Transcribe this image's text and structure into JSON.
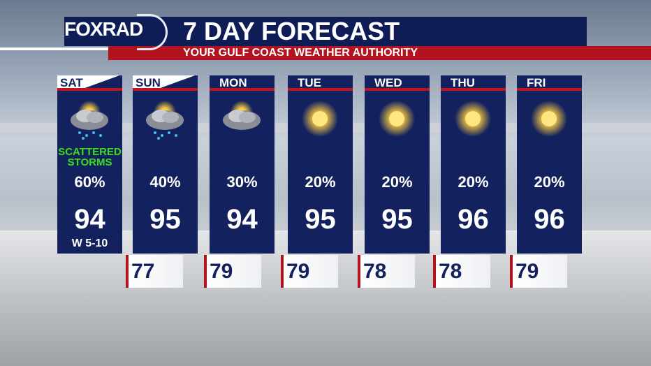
{
  "header": {
    "logo": "FOXRAD",
    "title": "7 DAY FORECAST",
    "subtitle": "YOUR GULF COAST WEATHER AUTHORITY"
  },
  "colors": {
    "navy": "#13225e",
    "red": "#b3121f",
    "condition_green": "#3fd23a"
  },
  "days": [
    {
      "day": "SAT",
      "icon": "storm-cloud-rain-icon",
      "condition": "SCATTERED STORMS",
      "precip": "60%",
      "high": "94",
      "low": "77",
      "wind": "W 5-10"
    },
    {
      "day": "SUN",
      "icon": "storm-cloud-rain-icon",
      "precip": "40%",
      "high": "95",
      "low": "79"
    },
    {
      "day": "MON",
      "icon": "storm-cloud-icon",
      "precip": "30%",
      "high": "94",
      "low": "79"
    },
    {
      "day": "TUE",
      "icon": "sun-icon",
      "precip": "20%",
      "high": "95",
      "low": "78"
    },
    {
      "day": "WED",
      "icon": "sun-icon",
      "precip": "20%",
      "high": "95",
      "low": "78"
    },
    {
      "day": "THU",
      "icon": "sun-icon",
      "precip": "20%",
      "high": "96",
      "low": "79"
    },
    {
      "day": "FRI",
      "icon": "sun-icon",
      "precip": "20%",
      "high": "96"
    }
  ]
}
